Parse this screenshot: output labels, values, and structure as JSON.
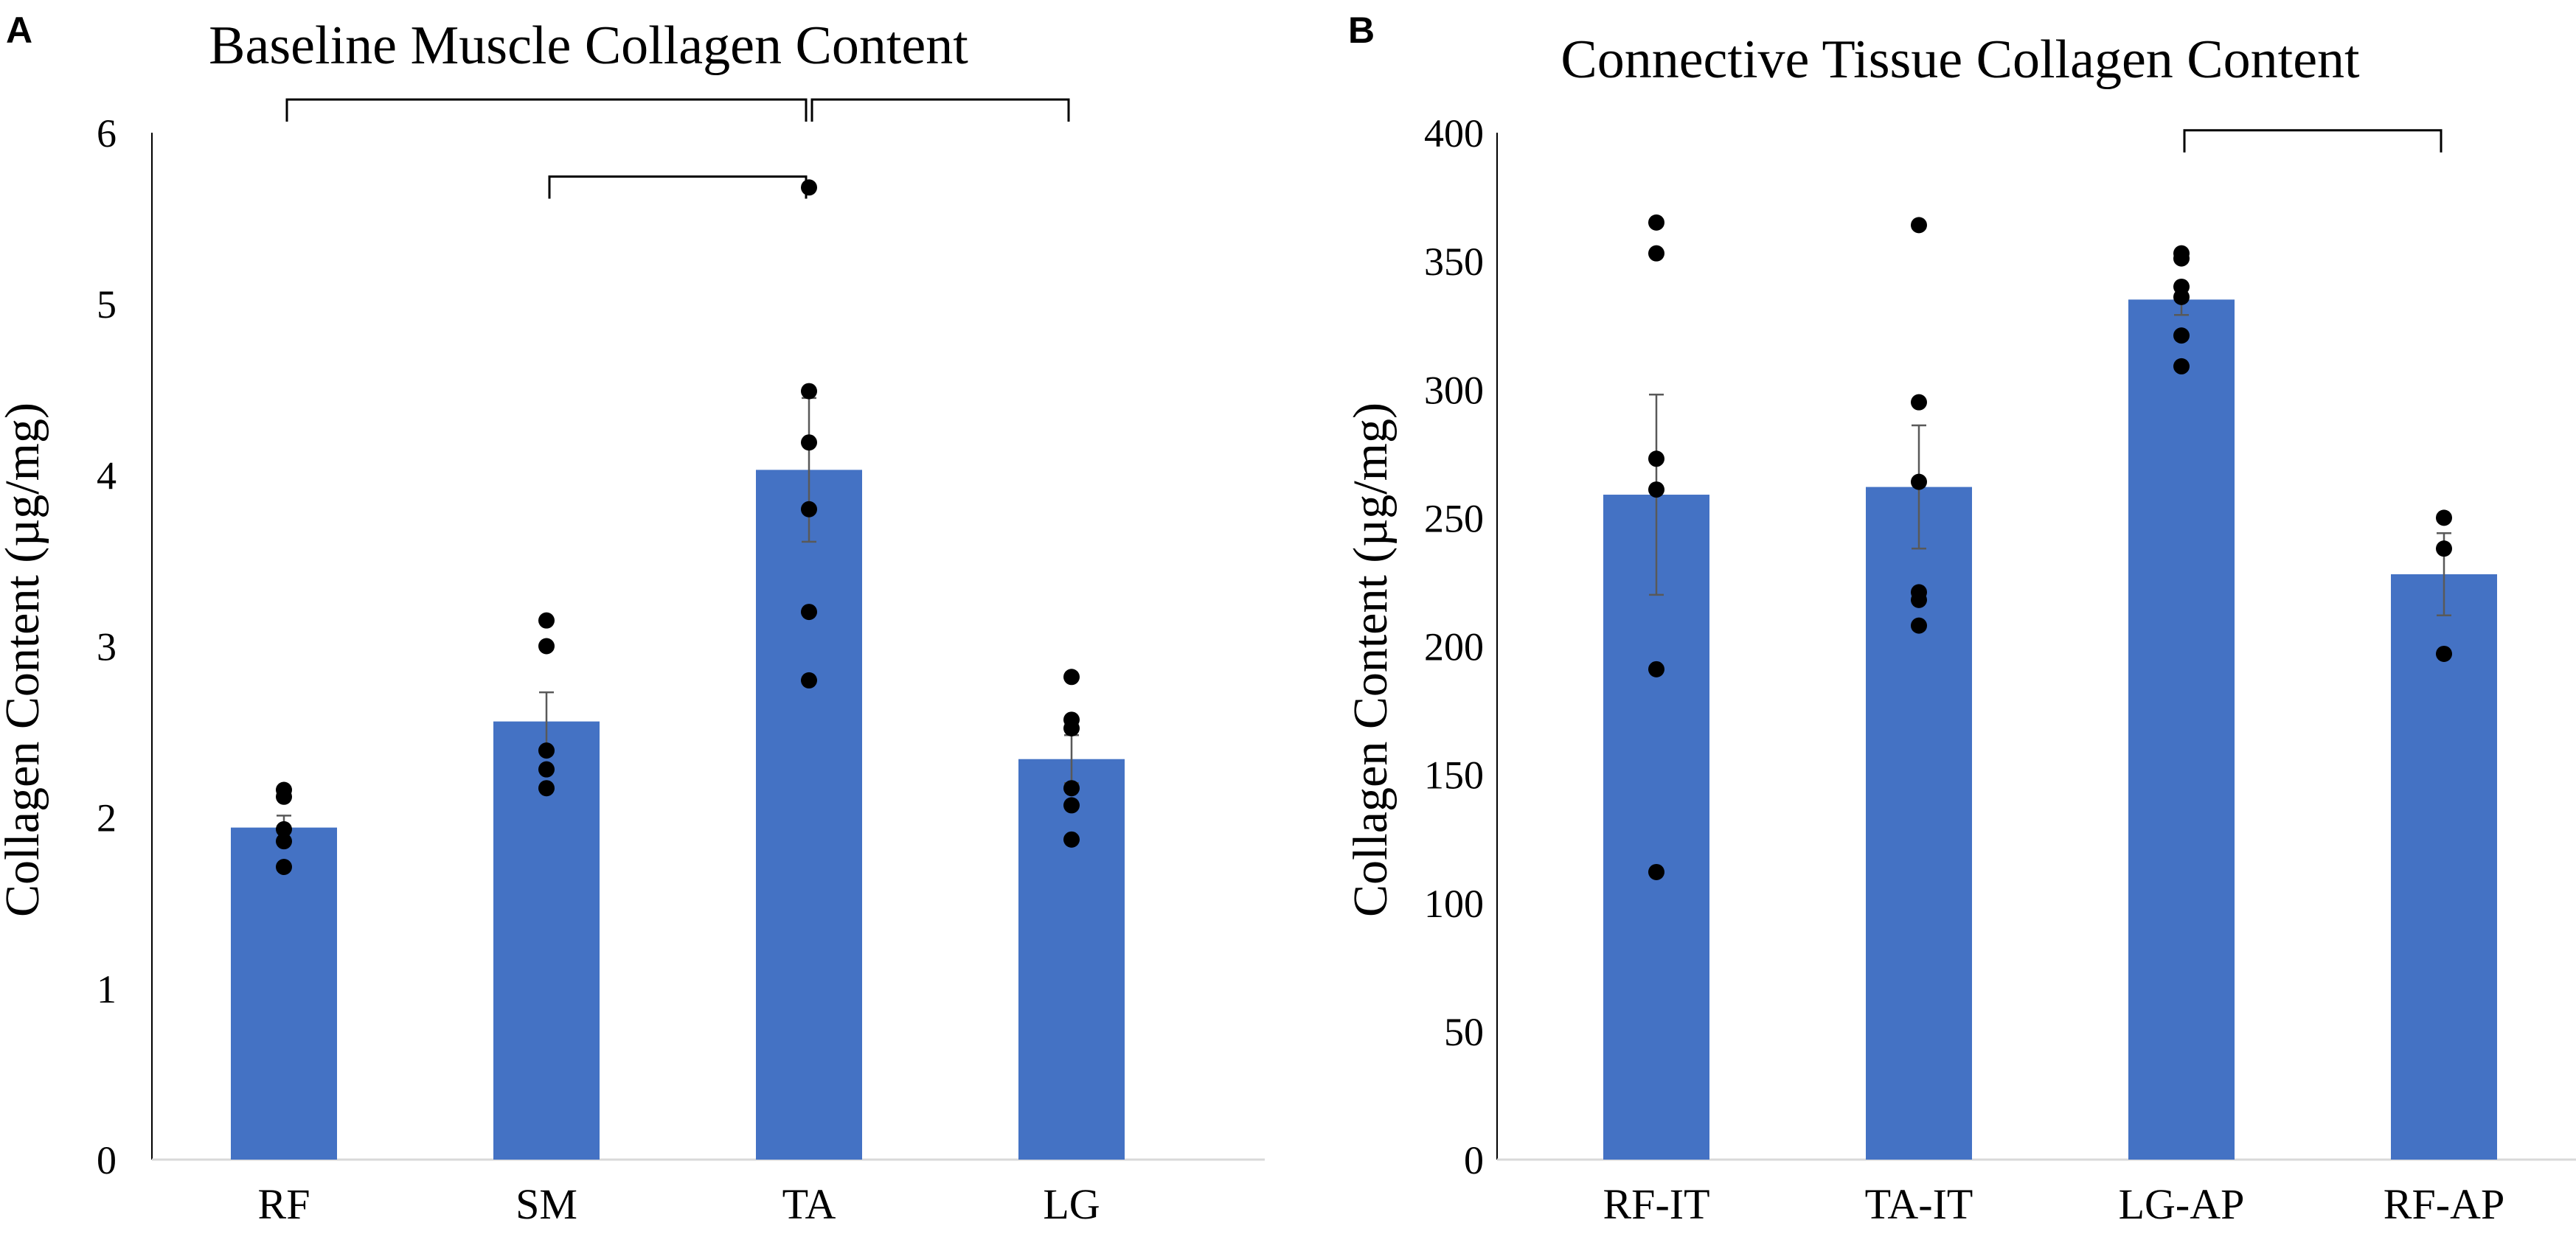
{
  "chart_data": [
    {
      "type": "bar",
      "panel_label": "A",
      "title": "Baseline Muscle Collagen Content",
      "xlabel": "",
      "ylabel": "Collagen Content (µg/mg)",
      "ylim": [
        0,
        6
      ],
      "yticks": [
        "0",
        "1",
        "2",
        "3",
        "4",
        "5",
        "6"
      ],
      "grid": false,
      "bar_color": "#4472C4",
      "categories": [
        "RF",
        "SM",
        "TA",
        "LG"
      ],
      "values": [
        1.94,
        2.56,
        4.03,
        2.34
      ],
      "errors": [
        0.07,
        0.17,
        0.42,
        0.14
      ],
      "points": [
        [
          2.16,
          2.12,
          1.93,
          1.86,
          1.71
        ],
        [
          3.15,
          3.0,
          2.39,
          2.28,
          2.17
        ],
        [
          5.68,
          4.49,
          4.19,
          3.8,
          3.2,
          2.8
        ],
        [
          2.82,
          2.57,
          2.52,
          2.17,
          2.07,
          1.87
        ]
      ],
      "brackets": [
        {
          "from": "RF",
          "to": "TA",
          "level": 6.0
        },
        {
          "from": "SM",
          "to": "TA",
          "level": 5.55
        },
        {
          "from": "TA",
          "to": "LG",
          "level": 6.0
        }
      ]
    },
    {
      "type": "bar",
      "panel_label": "B",
      "title": "Connective Tissue Collagen Content",
      "xlabel": "",
      "ylabel": "Collagen Content (µg/mg)",
      "ylim": [
        0,
        400
      ],
      "yticks": [
        "0",
        "50",
        "100",
        "150",
        "200",
        "250",
        "300",
        "350",
        "400"
      ],
      "grid": false,
      "bar_color": "#4472C4",
      "categories": [
        "RF-IT",
        "TA-IT",
        "LG-AP",
        "RF-AP"
      ],
      "values": [
        259,
        262,
        335,
        228
      ],
      "errors": [
        39,
        24,
        6,
        16
      ],
      "points": [
        [
          365,
          353,
          273,
          261,
          191,
          112
        ],
        [
          364,
          295,
          264,
          221,
          218,
          208
        ],
        [
          353,
          351,
          340,
          336,
          321,
          309
        ],
        [
          250,
          238,
          197
        ]
      ],
      "brackets": [
        {
          "from": "LG-AP",
          "to": "RF-AP",
          "level": 388
        }
      ]
    }
  ]
}
